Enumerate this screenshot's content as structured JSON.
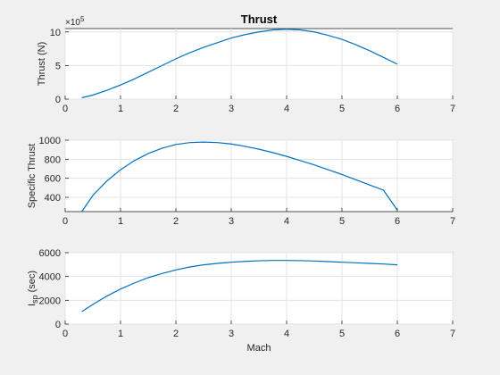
{
  "figure": {
    "background": "#f0f0f0",
    "line_color": "#0072bd"
  },
  "chart_data": [
    {
      "type": "line",
      "title": "Thrust",
      "xlabel": "",
      "ylabel": "Thrust (N)",
      "y_exponent_base": "×10",
      "y_exponent_power": "5",
      "xlim": [
        0,
        7
      ],
      "ylim": [
        0,
        10.5
      ],
      "xticks": [
        0,
        1,
        2,
        3,
        4,
        5,
        6,
        7
      ],
      "yticks": [
        0,
        5,
        10
      ],
      "grid": true,
      "series": [
        {
          "x": [
            0.3,
            0.5,
            0.75,
            1.0,
            1.25,
            1.5,
            1.75,
            2.0,
            2.25,
            2.5,
            2.75,
            3.0,
            3.25,
            3.5,
            3.75,
            4.0,
            4.25,
            4.5,
            4.75,
            5.0,
            5.25,
            5.5,
            5.75,
            6.0
          ],
          "y": [
            0.2,
            0.6,
            1.3,
            2.1,
            3.0,
            4.0,
            5.0,
            6.0,
            6.9,
            7.7,
            8.4,
            9.1,
            9.6,
            10.0,
            10.3,
            10.4,
            10.3,
            10.0,
            9.5,
            8.9,
            8.1,
            7.2,
            6.2,
            5.2
          ]
        }
      ]
    },
    {
      "type": "line",
      "title": "",
      "xlabel": "",
      "ylabel": "Specific Thrust",
      "xlim": [
        0,
        7
      ],
      "ylim": [
        250,
        1000
      ],
      "xticks": [
        0,
        1,
        2,
        3,
        4,
        5,
        6,
        7
      ],
      "yticks": [
        400,
        600,
        800,
        1000
      ],
      "grid": true,
      "series": [
        {
          "x": [
            0.3,
            0.5,
            0.75,
            1.0,
            1.25,
            1.5,
            1.75,
            2.0,
            2.25,
            2.5,
            2.75,
            3.0,
            3.25,
            3.5,
            3.75,
            4.0,
            4.25,
            4.5,
            4.75,
            5.0,
            5.25,
            5.5,
            5.75,
            6.0
          ],
          "y": [
            250,
            420,
            570,
            690,
            785,
            860,
            915,
            955,
            975,
            980,
            975,
            960,
            935,
            905,
            870,
            830,
            785,
            740,
            690,
            640,
            585,
            530,
            475,
            265
          ]
        }
      ]
    },
    {
      "type": "line",
      "title": "",
      "xlabel": "Mach",
      "ylabel_main": "I",
      "ylabel_sub": "sp",
      "ylabel_suffix": " (sec)",
      "xlim": [
        0,
        7
      ],
      "ylim": [
        0,
        6000
      ],
      "xticks": [
        0,
        1,
        2,
        3,
        4,
        5,
        6,
        7
      ],
      "yticks": [
        0,
        2000,
        4000,
        6000
      ],
      "grid": true,
      "series": [
        {
          "x": [
            0.3,
            0.5,
            0.75,
            1.0,
            1.25,
            1.5,
            1.75,
            2.0,
            2.25,
            2.5,
            2.75,
            3.0,
            3.25,
            3.5,
            3.75,
            4.0,
            4.25,
            4.5,
            4.75,
            5.0,
            5.25,
            5.5,
            5.75,
            6.0
          ],
          "y": [
            1050,
            1650,
            2350,
            2950,
            3450,
            3900,
            4250,
            4550,
            4800,
            4980,
            5100,
            5200,
            5270,
            5320,
            5350,
            5350,
            5330,
            5300,
            5250,
            5200,
            5150,
            5100,
            5050,
            4980
          ]
        }
      ]
    }
  ]
}
